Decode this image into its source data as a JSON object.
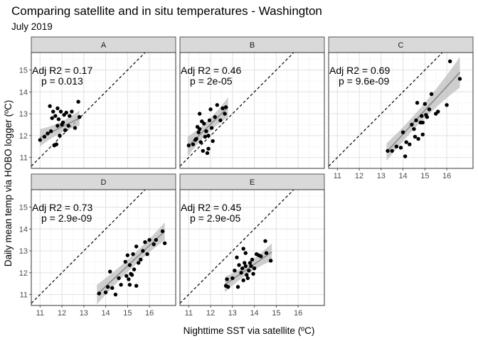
{
  "chart_data": {
    "type": "scatter",
    "title": "Comparing satellite and in situ temperatures - Washington",
    "subtitle": "July 2019",
    "xlabel": "Nighttime SST via satellite (ºC)",
    "ylabel": "Daily mean temp via HOBO logger (ºC)",
    "xlim": [
      10.6,
      17.2
    ],
    "ylim": [
      10.5,
      15.8
    ],
    "x_ticks": [
      11,
      12,
      13,
      14,
      15,
      16
    ],
    "y_ticks": [
      11,
      12,
      13,
      14,
      15
    ],
    "reference_line": "y = x (dashed)",
    "grid": true,
    "panels": [
      {
        "name": "A",
        "adj_r2_label": "Adj R2 = 0.17",
        "p_label": "p = 0.013",
        "fit": {
          "x0": 11.0,
          "y0": 11.9,
          "x1": 12.8,
          "y1": 12.8,
          "band_start": 0.4,
          "band_mid": 0.15,
          "band_end": 0.35
        },
        "points": [
          [
            11.0,
            11.8
          ],
          [
            11.2,
            11.95
          ],
          [
            11.35,
            12.1
          ],
          [
            11.45,
            13.35
          ],
          [
            11.5,
            12.2
          ],
          [
            11.55,
            12.8
          ],
          [
            11.6,
            13.1
          ],
          [
            11.65,
            11.55
          ],
          [
            11.7,
            12.9
          ],
          [
            11.75,
            11.6
          ],
          [
            11.8,
            13.25
          ],
          [
            11.85,
            12.75
          ],
          [
            11.9,
            12.0
          ],
          [
            11.95,
            13.1
          ],
          [
            12.0,
            12.5
          ],
          [
            12.05,
            12.6
          ],
          [
            12.1,
            12.95
          ],
          [
            12.15,
            12.25
          ],
          [
            12.2,
            13.05
          ],
          [
            12.3,
            12.45
          ],
          [
            12.35,
            12.9
          ],
          [
            12.45,
            13.1
          ],
          [
            12.6,
            12.35
          ],
          [
            12.75,
            13.55
          ],
          [
            12.8,
            12.85
          ],
          [
            11.8,
            12.45
          ]
        ]
      },
      {
        "name": "B",
        "adj_r2_label": "Adj R2 = 0.46",
        "p_label": "p = 2e-05",
        "fit": {
          "x0": 10.95,
          "y0": 11.5,
          "x1": 12.8,
          "y1": 13.3,
          "band_start": 0.45,
          "band_mid": 0.15,
          "band_end": 0.45
        },
        "points": [
          [
            11.0,
            11.55
          ],
          [
            11.2,
            11.6
          ],
          [
            11.3,
            11.8
          ],
          [
            11.35,
            11.85
          ],
          [
            11.4,
            12.4
          ],
          [
            11.45,
            12.15
          ],
          [
            11.5,
            12.3
          ],
          [
            11.55,
            11.7
          ],
          [
            11.6,
            12.65
          ],
          [
            11.65,
            11.3
          ],
          [
            11.7,
            12.55
          ],
          [
            11.75,
            11.95
          ],
          [
            11.8,
            12.2
          ],
          [
            11.85,
            11.2
          ],
          [
            11.9,
            12.0
          ],
          [
            11.95,
            12.7
          ],
          [
            12.0,
            13.2
          ],
          [
            12.05,
            12.35
          ],
          [
            12.1,
            11.75
          ],
          [
            12.2,
            12.85
          ],
          [
            12.3,
            13.4
          ],
          [
            12.45,
            12.7
          ],
          [
            12.55,
            13.25
          ],
          [
            12.65,
            13.0
          ],
          [
            12.7,
            13.3
          ],
          [
            11.5,
            13.0
          ],
          [
            11.9,
            11.4
          ]
        ]
      },
      {
        "name": "C",
        "adj_r2_label": "Adj R2 = 0.69",
        "p_label": "p = 9.6e-09",
        "fit": {
          "x0": 13.25,
          "y0": 11.25,
          "x1": 16.6,
          "y1": 14.9,
          "band_start": 0.4,
          "band_mid": 0.15,
          "band_end": 0.7
        },
        "points": [
          [
            13.3,
            11.3
          ],
          [
            13.5,
            11.3
          ],
          [
            13.7,
            11.5
          ],
          [
            13.9,
            11.45
          ],
          [
            14.0,
            12.15
          ],
          [
            14.1,
            11.05
          ],
          [
            14.15,
            11.7
          ],
          [
            14.3,
            11.6
          ],
          [
            14.4,
            12.5
          ],
          [
            14.5,
            12.3
          ],
          [
            14.55,
            11.95
          ],
          [
            14.6,
            12.7
          ],
          [
            14.65,
            13.5
          ],
          [
            14.7,
            11.85
          ],
          [
            14.8,
            12.6
          ],
          [
            14.85,
            12.9
          ],
          [
            14.9,
            12.05
          ],
          [
            15.0,
            13.45
          ],
          [
            15.05,
            12.95
          ],
          [
            15.1,
            12.85
          ],
          [
            15.2,
            13.2
          ],
          [
            15.3,
            13.9
          ],
          [
            15.5,
            13.0
          ],
          [
            15.6,
            13.1
          ],
          [
            16.0,
            13.4
          ],
          [
            16.15,
            15.4
          ],
          [
            16.6,
            14.6
          ],
          [
            14.9,
            12.6
          ]
        ]
      },
      {
        "name": "D",
        "adj_r2_label": "Adj R2 = 0.73",
        "p_label": "p = 2.9e-09",
        "fit": {
          "x0": 13.6,
          "y0": 11.0,
          "x1": 16.7,
          "y1": 13.9,
          "band_start": 0.45,
          "band_mid": 0.15,
          "band_end": 0.4
        },
        "points": [
          [
            13.7,
            11.05
          ],
          [
            14.0,
            11.1
          ],
          [
            14.1,
            11.35
          ],
          [
            14.2,
            12.05
          ],
          [
            14.3,
            11.3
          ],
          [
            14.45,
            11.0
          ],
          [
            14.6,
            11.75
          ],
          [
            14.7,
            11.45
          ],
          [
            14.9,
            12.5
          ],
          [
            14.95,
            11.85
          ],
          [
            15.0,
            12.8
          ],
          [
            15.05,
            11.7
          ],
          [
            15.1,
            12.35
          ],
          [
            15.15,
            11.95
          ],
          [
            15.2,
            11.9
          ],
          [
            15.25,
            12.85
          ],
          [
            15.3,
            12.15
          ],
          [
            15.4,
            11.4
          ],
          [
            15.5,
            12.45
          ],
          [
            15.6,
            12.6
          ],
          [
            15.7,
            13.0
          ],
          [
            15.8,
            13.4
          ],
          [
            15.9,
            12.85
          ],
          [
            16.0,
            13.5
          ],
          [
            16.2,
            13.3
          ],
          [
            16.3,
            13.5
          ],
          [
            16.6,
            13.9
          ],
          [
            16.7,
            13.35
          ],
          [
            15.1,
            11.45
          ],
          [
            15.4,
            13.2
          ]
        ]
      },
      {
        "name": "E",
        "adj_r2_label": "Adj R2 = 0.45",
        "p_label": "p = 2.9e-05",
        "fit": {
          "x0": 12.65,
          "y0": 11.45,
          "x1": 14.8,
          "y1": 12.95,
          "band_start": 0.35,
          "band_mid": 0.12,
          "band_end": 0.4
        },
        "points": [
          [
            12.7,
            11.4
          ],
          [
            12.75,
            11.7
          ],
          [
            12.8,
            11.35
          ],
          [
            13.0,
            11.75
          ],
          [
            13.1,
            12.1
          ],
          [
            13.2,
            12.7
          ],
          [
            13.25,
            11.35
          ],
          [
            13.3,
            12.35
          ],
          [
            13.4,
            12.0
          ],
          [
            13.45,
            12.2
          ],
          [
            13.5,
            11.65
          ],
          [
            13.55,
            12.45
          ],
          [
            13.6,
            12.3
          ],
          [
            13.65,
            11.9
          ],
          [
            13.7,
            11.75
          ],
          [
            13.75,
            12.1
          ],
          [
            13.8,
            12.45
          ],
          [
            13.85,
            12.3
          ],
          [
            13.9,
            12.6
          ],
          [
            13.95,
            11.95
          ],
          [
            14.0,
            12.2
          ],
          [
            14.1,
            12.85
          ],
          [
            14.2,
            12.8
          ],
          [
            14.3,
            12.75
          ],
          [
            14.5,
            13.45
          ],
          [
            14.55,
            12.9
          ],
          [
            14.75,
            12.55
          ],
          [
            13.5,
            13.1
          ],
          [
            13.6,
            12.9
          ]
        ]
      }
    ]
  }
}
